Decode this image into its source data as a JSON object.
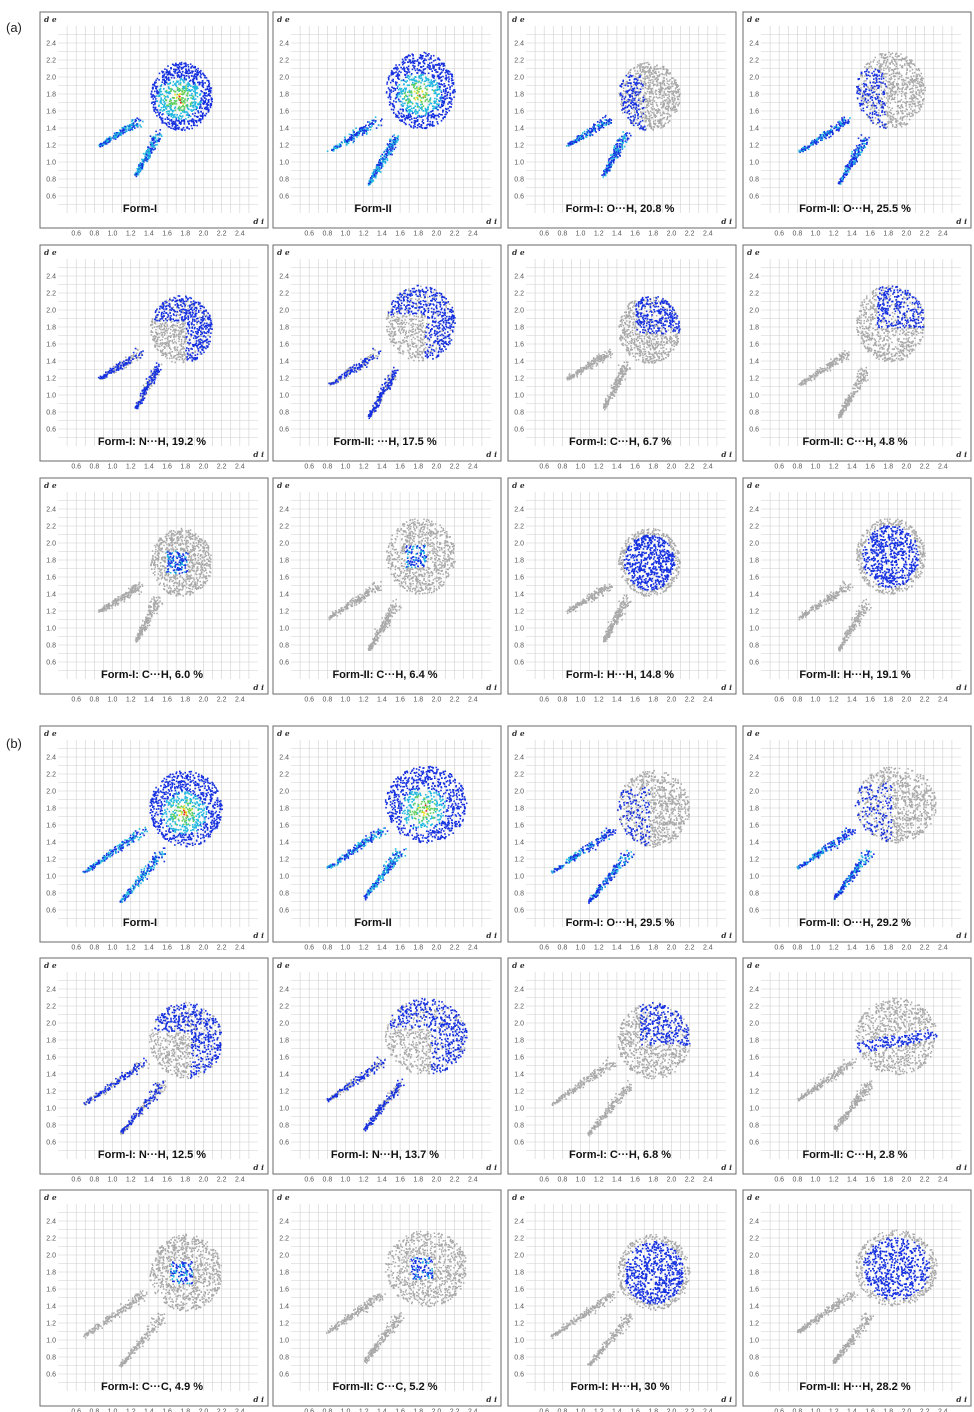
{
  "figure": {
    "section_labels": [
      "(a)",
      "(b)"
    ],
    "axes": {
      "xlabel": "d i",
      "ylabel": "d e"
    },
    "ticks": {
      "x": [
        "0.6",
        "0.8",
        "1.0",
        "1.2",
        "1.4",
        "1.6",
        "1.8",
        "2.0",
        "2.2",
        "2.4"
      ],
      "y": [
        "0.6",
        "0.8",
        "1.0",
        "1.2",
        "1.4",
        "1.6",
        "1.8",
        "2.0",
        "2.2",
        "2.4"
      ]
    },
    "colors": {
      "grey": "#a9a9a9",
      "blue": "#1530e0",
      "cyan": "#22b8e0",
      "green": "#5fd05f",
      "yellow": "#f0e020",
      "red": "#e02020",
      "grid": "#cfcfcf",
      "frame": "#6a6a6a"
    }
  },
  "chart_data": [
    {
      "type": "scatter",
      "title": "Form-I",
      "xlabel": "d i",
      "ylabel": "d e",
      "xlim": [
        0.4,
        2.6
      ],
      "ylim": [
        0.4,
        2.6
      ],
      "highlight": "full",
      "hotspot": [
        1.72,
        1.75
      ],
      "envelope": {
        "c": [
          1.75,
          1.78
        ],
        "r": [
          0.34,
          0.4
        ],
        "spike1": [
          [
            0.85,
            1.2
          ],
          [
            1.3,
            1.5
          ]
        ],
        "spike2": [
          [
            1.25,
            0.85
          ],
          [
            1.5,
            1.35
          ]
        ]
      }
    },
    {
      "type": "scatter",
      "title": "Form-II",
      "xlabel": "d i",
      "ylabel": "d e",
      "xlim": [
        0.4,
        2.6
      ],
      "ylim": [
        0.4,
        2.6
      ],
      "highlight": "full",
      "hotspot": [
        1.8,
        1.8
      ],
      "envelope": {
        "c": [
          1.82,
          1.85
        ],
        "r": [
          0.38,
          0.45
        ],
        "spike1": [
          [
            0.82,
            1.13
          ],
          [
            1.35,
            1.5
          ]
        ],
        "spike2": [
          [
            1.25,
            0.75
          ],
          [
            1.55,
            1.3
          ]
        ]
      }
    },
    {
      "type": "scatter",
      "title": "Form-I: O···H, 20.8 %",
      "xlabel": "d i",
      "ylabel": "d e",
      "xlim": [
        0.4,
        2.6
      ],
      "ylim": [
        0.4,
        2.6
      ],
      "highlight": "spikes",
      "envelope": {
        "c": [
          1.75,
          1.78
        ],
        "r": [
          0.34,
          0.4
        ],
        "spike1": [
          [
            0.85,
            1.2
          ],
          [
            1.3,
            1.5
          ]
        ],
        "spike2": [
          [
            1.25,
            0.85
          ],
          [
            1.5,
            1.35
          ]
        ]
      }
    },
    {
      "type": "scatter",
      "title": "Form-II: O···H, 25.5 %",
      "xlabel": "d i",
      "ylabel": "d e",
      "xlim": [
        0.4,
        2.6
      ],
      "ylim": [
        0.4,
        2.6
      ],
      "highlight": "spikes",
      "envelope": {
        "c": [
          1.82,
          1.85
        ],
        "r": [
          0.38,
          0.45
        ],
        "spike1": [
          [
            0.82,
            1.13
          ],
          [
            1.35,
            1.5
          ]
        ],
        "spike2": [
          [
            1.25,
            0.75
          ],
          [
            1.55,
            1.3
          ]
        ]
      }
    },
    {
      "type": "scatter",
      "title": "Form-I: N···H, 19.2 %",
      "xlabel": "d i",
      "ylabel": "d e",
      "xlim": [
        0.4,
        2.6
      ],
      "ylim": [
        0.4,
        2.6
      ],
      "highlight": "wings",
      "envelope": {
        "c": [
          1.75,
          1.78
        ],
        "r": [
          0.34,
          0.4
        ],
        "spike1": [
          [
            0.85,
            1.2
          ],
          [
            1.3,
            1.5
          ]
        ],
        "spike2": [
          [
            1.25,
            0.85
          ],
          [
            1.5,
            1.35
          ]
        ]
      }
    },
    {
      "type": "scatter",
      "title": "Form-II: ···H, 17.5 %",
      "xlabel": "d i",
      "ylabel": "d e",
      "xlim": [
        0.4,
        2.6
      ],
      "ylim": [
        0.4,
        2.6
      ],
      "highlight": "wings",
      "envelope": {
        "c": [
          1.82,
          1.85
        ],
        "r": [
          0.38,
          0.45
        ],
        "spike1": [
          [
            0.82,
            1.13
          ],
          [
            1.35,
            1.5
          ]
        ],
        "spike2": [
          [
            1.25,
            0.75
          ],
          [
            1.55,
            1.3
          ]
        ]
      }
    },
    {
      "type": "scatter",
      "title": "Form-I:  C···H, 6.7 %",
      "xlabel": "d i",
      "ylabel": "d e",
      "xlim": [
        0.4,
        2.6
      ],
      "ylim": [
        0.4,
        2.6
      ],
      "highlight": "upper",
      "envelope": {
        "c": [
          1.75,
          1.78
        ],
        "r": [
          0.34,
          0.4
        ],
        "spike1": [
          [
            0.85,
            1.2
          ],
          [
            1.3,
            1.5
          ]
        ],
        "spike2": [
          [
            1.25,
            0.85
          ],
          [
            1.5,
            1.35
          ]
        ]
      }
    },
    {
      "type": "scatter",
      "title": "Form-II: C···H, 4.8 %",
      "xlabel": "d i",
      "ylabel": "d e",
      "xlim": [
        0.4,
        2.6
      ],
      "ylim": [
        0.4,
        2.6
      ],
      "highlight": "upper",
      "envelope": {
        "c": [
          1.82,
          1.85
        ],
        "r": [
          0.38,
          0.45
        ],
        "spike1": [
          [
            0.82,
            1.13
          ],
          [
            1.35,
            1.5
          ]
        ],
        "spike2": [
          [
            1.25,
            0.75
          ],
          [
            1.55,
            1.3
          ]
        ]
      }
    },
    {
      "type": "scatter",
      "title": "Form-I: C···H, 6.0 %",
      "xlabel": "d i",
      "ylabel": "d e",
      "xlim": [
        0.4,
        2.6
      ],
      "ylim": [
        0.4,
        2.6
      ],
      "highlight": "center",
      "envelope": {
        "c": [
          1.75,
          1.78
        ],
        "r": [
          0.34,
          0.4
        ],
        "spike1": [
          [
            0.85,
            1.2
          ],
          [
            1.3,
            1.5
          ]
        ],
        "spike2": [
          [
            1.25,
            0.85
          ],
          [
            1.5,
            1.35
          ]
        ]
      }
    },
    {
      "type": "scatter",
      "title": "Form-II: C···H, 6.4 %",
      "xlabel": "d i",
      "ylabel": "d e",
      "xlim": [
        0.4,
        2.6
      ],
      "ylim": [
        0.4,
        2.6
      ],
      "highlight": "center",
      "envelope": {
        "c": [
          1.82,
          1.85
        ],
        "r": [
          0.38,
          0.45
        ],
        "spike1": [
          [
            0.82,
            1.13
          ],
          [
            1.35,
            1.5
          ]
        ],
        "spike2": [
          [
            1.25,
            0.75
          ],
          [
            1.55,
            1.3
          ]
        ]
      }
    },
    {
      "type": "scatter",
      "title": "Form-I:  H···H, 14.8 %",
      "xlabel": "d i",
      "ylabel": "d e",
      "xlim": [
        0.4,
        2.6
      ],
      "ylim": [
        0.4,
        2.6
      ],
      "highlight": "body",
      "envelope": {
        "c": [
          1.75,
          1.78
        ],
        "r": [
          0.34,
          0.4
        ],
        "spike1": [
          [
            0.85,
            1.2
          ],
          [
            1.3,
            1.5
          ]
        ],
        "spike2": [
          [
            1.25,
            0.85
          ],
          [
            1.5,
            1.35
          ]
        ]
      }
    },
    {
      "type": "scatter",
      "title": "Form-II:  H···H, 19.1 %",
      "xlabel": "d i",
      "ylabel": "d e",
      "xlim": [
        0.4,
        2.6
      ],
      "ylim": [
        0.4,
        2.6
      ],
      "highlight": "body",
      "envelope": {
        "c": [
          1.82,
          1.85
        ],
        "r": [
          0.38,
          0.45
        ],
        "spike1": [
          [
            0.82,
            1.13
          ],
          [
            1.35,
            1.5
          ]
        ],
        "spike2": [
          [
            1.25,
            0.75
          ],
          [
            1.55,
            1.3
          ]
        ]
      }
    },
    {
      "type": "scatter",
      "title": "Form-I",
      "xlabel": "d i",
      "ylabel": "d e",
      "xlim": [
        0.4,
        2.6
      ],
      "ylim": [
        0.4,
        2.6
      ],
      "highlight": "full",
      "hotspot": [
        1.78,
        1.75
      ],
      "envelope": {
        "c": [
          1.8,
          1.8
        ],
        "r": [
          0.4,
          0.45
        ],
        "spike1": [
          [
            0.68,
            1.05
          ],
          [
            1.35,
            1.55
          ]
        ],
        "spike2": [
          [
            1.08,
            0.7
          ],
          [
            1.55,
            1.3
          ]
        ]
      }
    },
    {
      "type": "scatter",
      "title": "Form-II",
      "xlabel": "d i",
      "ylabel": "d e",
      "xlim": [
        0.4,
        2.6
      ],
      "ylim": [
        0.4,
        2.6
      ],
      "highlight": "full",
      "hotspot": [
        1.85,
        1.8
      ],
      "envelope": {
        "c": [
          1.88,
          1.85
        ],
        "r": [
          0.45,
          0.45
        ],
        "spike1": [
          [
            0.8,
            1.1
          ],
          [
            1.4,
            1.55
          ]
        ],
        "spike2": [
          [
            1.2,
            0.75
          ],
          [
            1.6,
            1.3
          ]
        ]
      }
    },
    {
      "type": "scatter",
      "title": "Form-I: O···H, 29.5 %",
      "xlabel": "d i",
      "ylabel": "d e",
      "xlim": [
        0.4,
        2.6
      ],
      "ylim": [
        0.4,
        2.6
      ],
      "highlight": "spikes",
      "envelope": {
        "c": [
          1.8,
          1.8
        ],
        "r": [
          0.4,
          0.45
        ],
        "spike1": [
          [
            0.68,
            1.05
          ],
          [
            1.35,
            1.55
          ]
        ],
        "spike2": [
          [
            1.08,
            0.7
          ],
          [
            1.55,
            1.3
          ]
        ]
      }
    },
    {
      "type": "scatter",
      "title": "Form-II: O···H, 29.2 %",
      "xlabel": "d i",
      "ylabel": "d e",
      "xlim": [
        0.4,
        2.6
      ],
      "ylim": [
        0.4,
        2.6
      ],
      "highlight": "spikes",
      "envelope": {
        "c": [
          1.88,
          1.85
        ],
        "r": [
          0.45,
          0.45
        ],
        "spike1": [
          [
            0.8,
            1.1
          ],
          [
            1.4,
            1.55
          ]
        ],
        "spike2": [
          [
            1.2,
            0.75
          ],
          [
            1.6,
            1.3
          ]
        ]
      }
    },
    {
      "type": "scatter",
      "title": "Form-I: N···H, 12.5 %",
      "xlabel": "d i",
      "ylabel": "d e",
      "xlim": [
        0.4,
        2.6
      ],
      "ylim": [
        0.4,
        2.6
      ],
      "highlight": "wings",
      "envelope": {
        "c": [
          1.8,
          1.8
        ],
        "r": [
          0.4,
          0.45
        ],
        "spike1": [
          [
            0.68,
            1.05
          ],
          [
            1.35,
            1.55
          ]
        ],
        "spike2": [
          [
            1.08,
            0.7
          ],
          [
            1.55,
            1.3
          ]
        ]
      }
    },
    {
      "type": "scatter",
      "title": "Form-I: N···H, 13.7 %",
      "xlabel": "d i",
      "ylabel": "d e",
      "xlim": [
        0.4,
        2.6
      ],
      "ylim": [
        0.4,
        2.6
      ],
      "highlight": "wings",
      "envelope": {
        "c": [
          1.88,
          1.85
        ],
        "r": [
          0.45,
          0.45
        ],
        "spike1": [
          [
            0.8,
            1.1
          ],
          [
            1.4,
            1.55
          ]
        ],
        "spike2": [
          [
            1.2,
            0.75
          ],
          [
            1.6,
            1.3
          ]
        ]
      }
    },
    {
      "type": "scatter",
      "title": "Form-I: C···H, 6.8 %",
      "xlabel": "d i",
      "ylabel": "d e",
      "xlim": [
        0.4,
        2.6
      ],
      "ylim": [
        0.4,
        2.6
      ],
      "highlight": "upper",
      "envelope": {
        "c": [
          1.8,
          1.8
        ],
        "r": [
          0.4,
          0.45
        ],
        "spike1": [
          [
            0.68,
            1.05
          ],
          [
            1.35,
            1.55
          ]
        ],
        "spike2": [
          [
            1.08,
            0.7
          ],
          [
            1.55,
            1.3
          ]
        ]
      }
    },
    {
      "type": "scatter",
      "title": "Form-II: C···H, 2.8 %",
      "xlabel": "d i",
      "ylabel": "d e",
      "xlim": [
        0.4,
        2.6
      ],
      "ylim": [
        0.4,
        2.6
      ],
      "highlight": "band",
      "envelope": {
        "c": [
          1.88,
          1.85
        ],
        "r": [
          0.45,
          0.45
        ],
        "spike1": [
          [
            0.8,
            1.1
          ],
          [
            1.4,
            1.55
          ]
        ],
        "spike2": [
          [
            1.2,
            0.75
          ],
          [
            1.6,
            1.3
          ]
        ]
      }
    },
    {
      "type": "scatter",
      "title": "Form-I: C···C, 4.9 %",
      "xlabel": "d i",
      "ylabel": "d e",
      "xlim": [
        0.4,
        2.6
      ],
      "ylim": [
        0.4,
        2.6
      ],
      "highlight": "center",
      "envelope": {
        "c": [
          1.8,
          1.8
        ],
        "r": [
          0.4,
          0.45
        ],
        "spike1": [
          [
            0.68,
            1.05
          ],
          [
            1.35,
            1.55
          ]
        ],
        "spike2": [
          [
            1.08,
            0.7
          ],
          [
            1.55,
            1.3
          ]
        ]
      }
    },
    {
      "type": "scatter",
      "title": "Form-II: C···C, 5.2 %",
      "xlabel": "d i",
      "ylabel": "d e",
      "xlim": [
        0.4,
        2.6
      ],
      "ylim": [
        0.4,
        2.6
      ],
      "highlight": "center",
      "envelope": {
        "c": [
          1.88,
          1.85
        ],
        "r": [
          0.45,
          0.45
        ],
        "spike1": [
          [
            0.8,
            1.1
          ],
          [
            1.4,
            1.55
          ]
        ],
        "spike2": [
          [
            1.2,
            0.75
          ],
          [
            1.6,
            1.3
          ]
        ]
      }
    },
    {
      "type": "scatter",
      "title": "Form-I: H···H, 30 %",
      "xlabel": "d i",
      "ylabel": "d e",
      "xlim": [
        0.4,
        2.6
      ],
      "ylim": [
        0.4,
        2.6
      ],
      "highlight": "body",
      "envelope": {
        "c": [
          1.8,
          1.8
        ],
        "r": [
          0.4,
          0.45
        ],
        "spike1": [
          [
            0.68,
            1.05
          ],
          [
            1.35,
            1.55
          ]
        ],
        "spike2": [
          [
            1.08,
            0.7
          ],
          [
            1.55,
            1.3
          ]
        ]
      }
    },
    {
      "type": "scatter",
      "title": "Form-II: H···H, 28.2 %",
      "xlabel": "d i",
      "ylabel": "d e",
      "xlim": [
        0.4,
        2.6
      ],
      "ylim": [
        0.4,
        2.6
      ],
      "highlight": "body",
      "envelope": {
        "c": [
          1.88,
          1.85
        ],
        "r": [
          0.45,
          0.45
        ],
        "spike1": [
          [
            0.8,
            1.1
          ],
          [
            1.4,
            1.55
          ]
        ],
        "spike2": [
          [
            1.2,
            0.75
          ],
          [
            1.6,
            1.3
          ]
        ]
      }
    }
  ]
}
